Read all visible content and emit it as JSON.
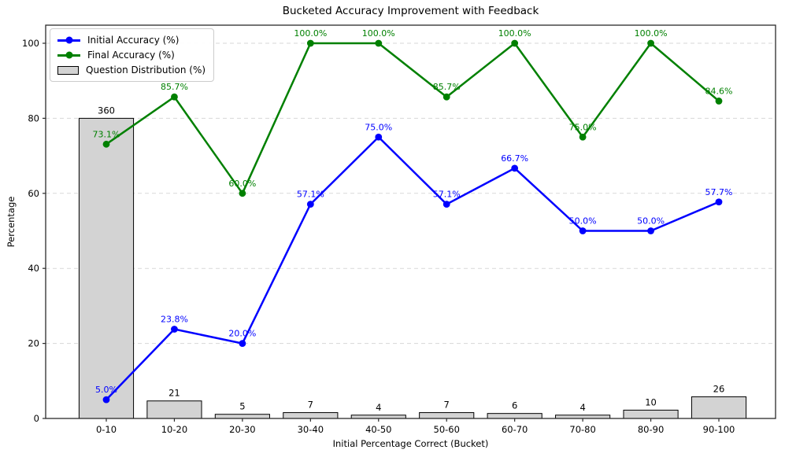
{
  "chart_data": {
    "type": "line+bar",
    "title": "Bucketed Accuracy Improvement with Feedback",
    "xlabel": "Initial Percentage Correct (Bucket)",
    "ylabel": "Percentage",
    "ylim": [
      0,
      105
    ],
    "yticks": [
      0,
      20,
      40,
      60,
      80,
      100
    ],
    "grid": "horizontal dashed",
    "legend_position": "upper left",
    "categories": [
      "0-10",
      "10-20",
      "20-30",
      "30-40",
      "40-50",
      "50-60",
      "60-70",
      "70-80",
      "80-90",
      "90-100"
    ],
    "series": [
      {
        "name": "Initial Accuracy (%)",
        "type": "line",
        "color": "#0000ff",
        "values": [
          5.0,
          23.8,
          20.0,
          57.1,
          75.0,
          57.1,
          66.7,
          50.0,
          50.0,
          57.7
        ],
        "point_labels": [
          "5.0%",
          "23.8%",
          "20.0%",
          "57.1%",
          "75.0%",
          "57.1%",
          "66.7%",
          "50.0%",
          "50.0%",
          "57.7%"
        ]
      },
      {
        "name": "Final Accuracy (%)",
        "type": "line",
        "color": "#008000",
        "values": [
          73.1,
          85.7,
          60.0,
          100.0,
          100.0,
          85.7,
          100.0,
          75.0,
          100.0,
          84.6
        ],
        "point_labels": [
          "73.1%",
          "85.7%",
          "60.0%",
          "100.0%",
          "100.0%",
          "85.7%",
          "100.0%",
          "75.0%",
          "100.0%",
          "84.6%"
        ]
      },
      {
        "name": "Question Distribution (%)",
        "type": "bar",
        "fill": "#d3d3d3",
        "edge": "#000000",
        "values": [
          80.0,
          4.67,
          1.11,
          1.56,
          0.89,
          1.56,
          1.33,
          0.89,
          2.22,
          5.78
        ],
        "counts": [
          360,
          21,
          5,
          7,
          4,
          7,
          6,
          4,
          10,
          26
        ],
        "bar_labels": [
          "360",
          "21",
          "5",
          "7",
          "4",
          "7",
          "6",
          "4",
          "10",
          "26"
        ]
      }
    ],
    "style": {
      "grid_color": "#d3d3d3",
      "spine_color": "#2b2b2b",
      "tick_label_color": "#000000"
    }
  }
}
